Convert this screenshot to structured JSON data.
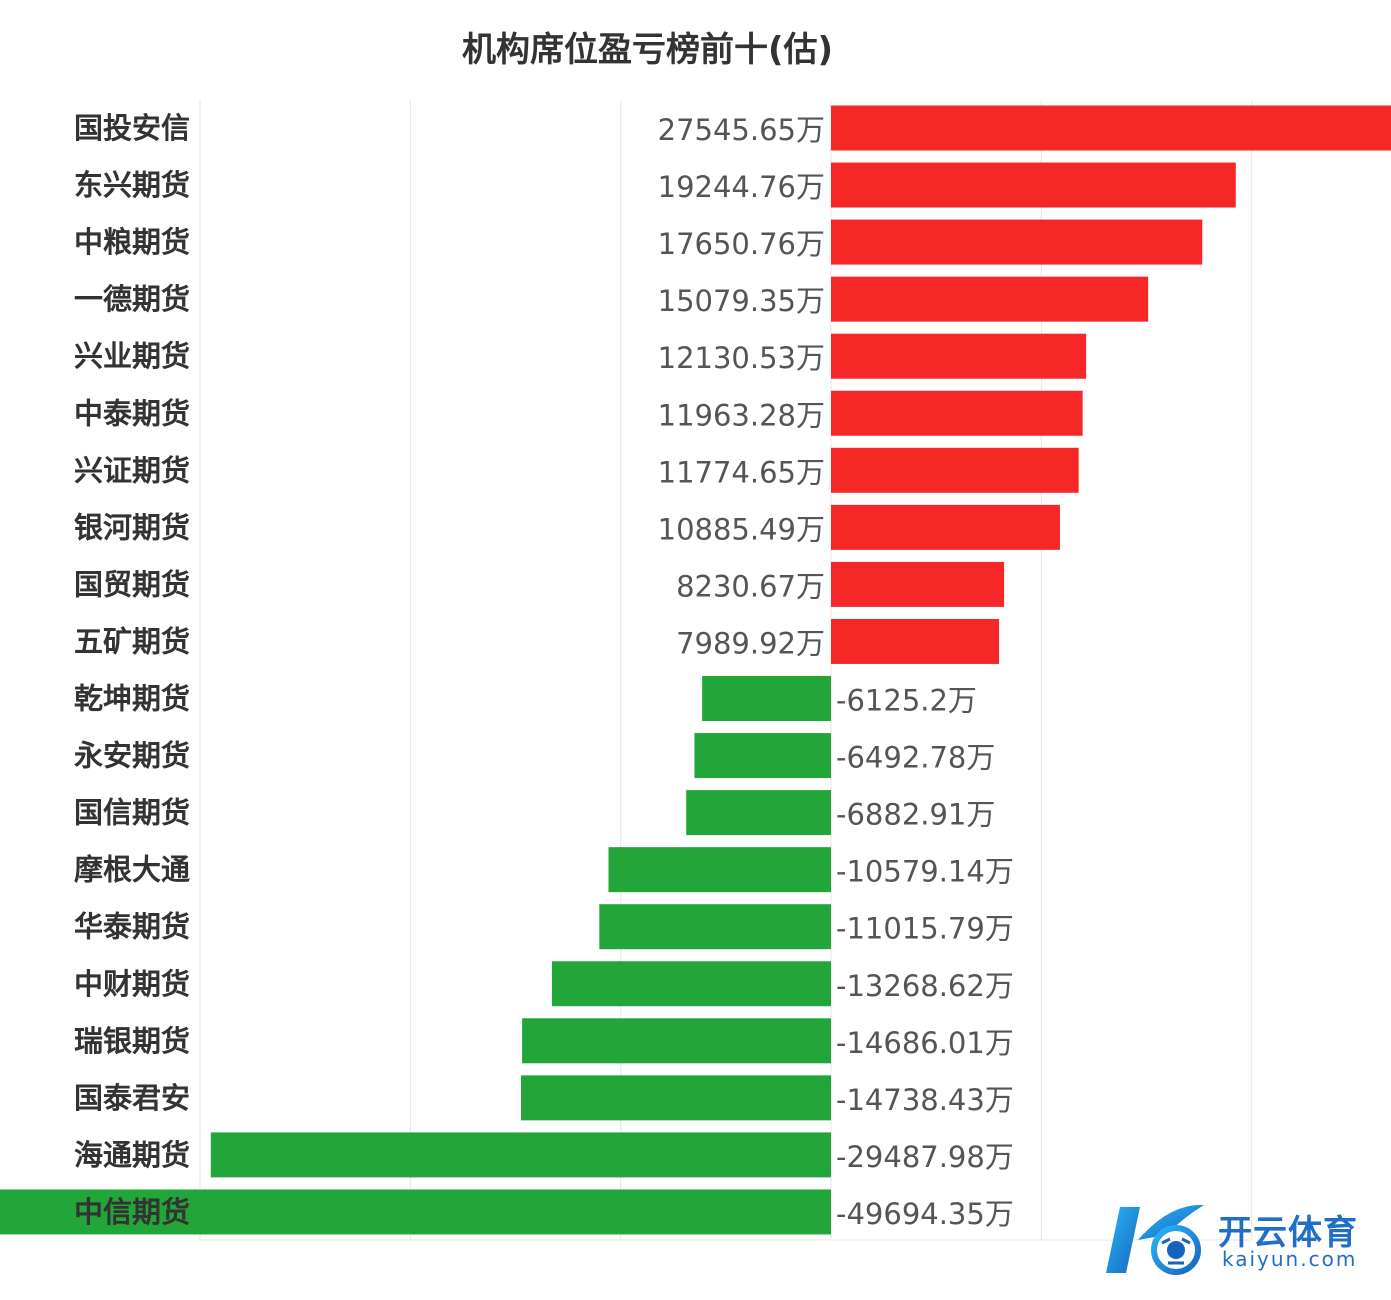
{
  "chart_data": {
    "type": "bar",
    "orientation": "horizontal",
    "title": "机构席位盈亏榜前十(估)",
    "unit": "万",
    "categories": [
      "国投安信",
      "东兴期货",
      "中粮期货",
      "一德期货",
      "兴业期货",
      "中泰期货",
      "兴证期货",
      "银河期货",
      "国贸期货",
      "五矿期货",
      "乾坤期货",
      "永安期货",
      "国信期货",
      "摩根大通",
      "华泰期货",
      "中财期货",
      "瑞银期货",
      "国泰君安",
      "海通期货",
      "中信期货"
    ],
    "values": [
      27545.65,
      19244.76,
      17650.76,
      15079.35,
      12130.53,
      11963.28,
      11774.65,
      10885.49,
      8230.67,
      7989.92,
      -6125.2,
      -6492.78,
      -6882.91,
      -10579.14,
      -11015.79,
      -13268.62,
      -14686.01,
      -14738.43,
      -29487.98,
      -49694.35
    ],
    "value_labels": [
      "27545.65万",
      "19244.76万",
      "17650.76万",
      "15079.35万",
      "12130.53万",
      "11963.28万",
      "11774.65万",
      "10885.49万",
      "8230.67万",
      "7989.92万",
      "-6125.2万",
      "-6492.78万",
      "-6882.91万",
      "-10579.14万",
      "-11015.79万",
      "-13268.62万",
      "-14686.01万",
      "-14738.43万",
      "-29487.98万",
      "-49694.35万"
    ],
    "xlim": [
      -60000,
      40000
    ],
    "grid": true,
    "colors": {
      "positive": "#f52727",
      "negative": "#22a63a",
      "grid": "#e6e6e6",
      "label": "#333333",
      "value": "#555555"
    }
  },
  "watermark": {
    "logo_letter": "K",
    "text": "开云体育",
    "subtext": "kaiyun.com",
    "color": "#1f6fc8"
  }
}
